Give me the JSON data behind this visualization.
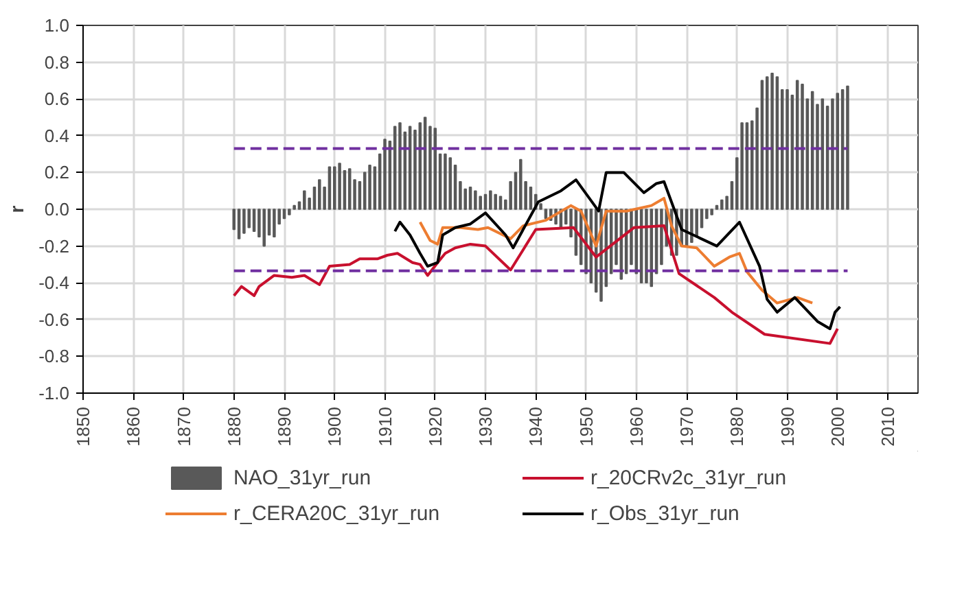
{
  "chart_data": {
    "type": "line",
    "ylabel": "r",
    "xlim": [
      1850,
      2016
    ],
    "xticks": [
      {
        "value": 1850,
        "label": "1850"
      },
      {
        "value": 1860,
        "label": "1860"
      },
      {
        "value": 1870,
        "label": "1870"
      },
      {
        "value": 1880,
        "label": "1880"
      },
      {
        "value": 1890,
        "label": "1890"
      },
      {
        "value": 1900,
        "label": "1900"
      },
      {
        "value": 1910,
        "label": "1910"
      },
      {
        "value": 1920,
        "label": "1920"
      },
      {
        "value": 1930,
        "label": "1930"
      },
      {
        "value": 1940,
        "label": "1940"
      },
      {
        "value": 1950,
        "label": "1950"
      },
      {
        "value": 1960,
        "label": "1960"
      },
      {
        "value": 1970,
        "label": "1970"
      },
      {
        "value": 1980,
        "label": "1980"
      },
      {
        "value": 1990,
        "label": "1990"
      },
      {
        "value": 2000,
        "label": "2000"
      },
      {
        "value": 2010,
        "label": "2010"
      }
    ],
    "ylim": [
      -1.0,
      1.0
    ],
    "yticks": [
      {
        "value": -1,
        "label": "-1.0"
      },
      {
        "value": -0.8,
        "label": "-0.8"
      },
      {
        "value": -0.6,
        "label": "-0.6"
      },
      {
        "value": -0.4,
        "label": "-0.4"
      },
      {
        "value": -0.2,
        "label": "-0.2"
      },
      {
        "value": 0,
        "label": "0.0"
      },
      {
        "value": 0.2,
        "label": "0.2"
      },
      {
        "value": 0.4,
        "label": "0.4"
      },
      {
        "value": 0.6,
        "label": "0.6"
      },
      {
        "value": 0.8,
        "label": "0.8"
      },
      {
        "value": 1,
        "label": "1.0"
      }
    ],
    "grid": true,
    "legend": "bottom",
    "series": [
      {
        "name": "NAO_31yr_run",
        "type": "bar",
        "color": "#595959",
        "x": [
          1880,
          1881,
          1882,
          1883,
          1884,
          1885,
          1886,
          1887,
          1888,
          1889,
          1890,
          1891,
          1892,
          1893,
          1894,
          1895,
          1896,
          1897,
          1898,
          1899,
          1900,
          1901,
          1902,
          1903,
          1904,
          1905,
          1906,
          1907,
          1908,
          1909,
          1910,
          1911,
          1912,
          1913,
          1914,
          1915,
          1916,
          1917,
          1918,
          1919,
          1920,
          1921,
          1922,
          1923,
          1924,
          1925,
          1926,
          1927,
          1928,
          1929,
          1930,
          1931,
          1932,
          1933,
          1934,
          1935,
          1936,
          1937,
          1938,
          1939,
          1940,
          1941,
          1942,
          1943,
          1944,
          1945,
          1946,
          1947,
          1948,
          1949,
          1950,
          1951,
          1952,
          1953,
          1954,
          1955,
          1956,
          1957,
          1958,
          1959,
          1960,
          1961,
          1962,
          1963,
          1964,
          1965,
          1966,
          1967,
          1968,
          1969,
          1970,
          1971,
          1972,
          1973,
          1974,
          1975,
          1976,
          1977,
          1978,
          1979,
          1980,
          1981,
          1982,
          1983,
          1984,
          1985,
          1986,
          1987,
          1988,
          1989,
          1990,
          1991,
          1992,
          1993,
          1994,
          1995,
          1996,
          1997,
          1998,
          1999,
          2000,
          2001,
          2002
        ],
        "values": [
          -0.11,
          -0.16,
          -0.13,
          -0.1,
          -0.12,
          -0.15,
          -0.2,
          -0.14,
          -0.15,
          -0.08,
          -0.05,
          -0.03,
          0.02,
          0.04,
          0.1,
          0.06,
          0.12,
          0.16,
          0.12,
          0.23,
          0.23,
          0.25,
          0.21,
          0.22,
          0.16,
          0.15,
          0.2,
          0.24,
          0.23,
          0.3,
          0.38,
          0.37,
          0.45,
          0.47,
          0.42,
          0.45,
          0.43,
          0.47,
          0.5,
          0.45,
          0.44,
          0.3,
          0.3,
          0.28,
          0.24,
          0.15,
          0.11,
          0.12,
          0.1,
          0.07,
          0.08,
          0.1,
          0.08,
          0.07,
          0.05,
          0.15,
          0.2,
          0.27,
          0.15,
          0.12,
          0.08,
          0.03,
          -0.05,
          -0.06,
          -0.08,
          -0.1,
          -0.08,
          -0.15,
          -0.25,
          -0.3,
          -0.35,
          -0.4,
          -0.45,
          -0.5,
          -0.42,
          -0.35,
          -0.3,
          -0.38,
          -0.35,
          -0.3,
          -0.35,
          -0.4,
          -0.4,
          -0.42,
          -0.35,
          -0.3,
          -0.2,
          -0.25,
          -0.25,
          -0.2,
          -0.2,
          -0.18,
          -0.15,
          -0.1,
          -0.05,
          -0.03,
          0.02,
          0.05,
          0.07,
          0.15,
          0.28,
          0.47,
          0.47,
          0.48,
          0.55,
          0.7,
          0.72,
          0.74,
          0.72,
          0.65,
          0.65,
          0.62,
          0.7,
          0.68,
          0.6,
          0.64,
          0.57,
          0.6,
          0.56,
          0.6,
          0.63,
          0.65,
          0.67
        ]
      },
      {
        "name": "r_20CRv2c_31yr_run",
        "color": "#c8102e",
        "x": [
          1880,
          1881.5,
          1884,
          1885,
          1888,
          1891.5,
          1894,
          1897,
          1899,
          1903,
          1905,
          1908.5,
          1910.5,
          1912.5,
          1915.5,
          1917,
          1918.5,
          1920.5,
          1922,
          1924,
          1927,
          1930,
          1935,
          1940,
          1947.5,
          1952,
          1959.5,
          1965.5,
          1968.5,
          1975.5,
          1979,
          1985.5,
          1998.5,
          2000
        ],
        "values": [
          -0.47,
          -0.42,
          -0.47,
          -0.42,
          -0.36,
          -0.37,
          -0.36,
          -0.41,
          -0.31,
          -0.3,
          -0.27,
          -0.27,
          -0.25,
          -0.24,
          -0.29,
          -0.3,
          -0.36,
          -0.29,
          -0.24,
          -0.21,
          -0.19,
          -0.2,
          -0.33,
          -0.11,
          -0.1,
          -0.26,
          -0.1,
          -0.09,
          -0.35,
          -0.48,
          -0.56,
          -0.68,
          -0.73,
          -0.65
        ]
      },
      {
        "name": "r_CERA20C_31yr_run",
        "color": "#ed7d31",
        "x": [
          1917,
          1919,
          1920.5,
          1921.5,
          1925,
          1928.5,
          1930.5,
          1935,
          1937.5,
          1942,
          1947,
          1949,
          1952,
          1954,
          1958,
          1963,
          1965.5,
          1967,
          1969,
          1972,
          1975.5,
          1978.5,
          1980.5,
          1982,
          1985,
          1988,
          1992,
          1995
        ],
        "values": [
          -0.07,
          -0.17,
          -0.19,
          -0.1,
          -0.1,
          -0.11,
          -0.1,
          -0.16,
          -0.09,
          -0.06,
          0.02,
          -0.01,
          -0.2,
          -0.01,
          -0.01,
          0.02,
          0.06,
          -0.09,
          -0.2,
          -0.21,
          -0.31,
          -0.26,
          -0.24,
          -0.34,
          -0.44,
          -0.51,
          -0.48,
          -0.51
        ]
      },
      {
        "name": "r_Obs_31yr_run",
        "color": "#000000",
        "x": [
          1912,
          1913,
          1915,
          1917,
          1918.5,
          1920.5,
          1921.5,
          1924,
          1927,
          1930,
          1934,
          1935.5,
          1940.5,
          1945,
          1948,
          1952.5,
          1954,
          1957.5,
          1961.5,
          1964,
          1965.5,
          1969,
          1976,
          1980.5,
          1984.5,
          1986,
          1988,
          1991.5,
          1996,
          1998.5,
          1999.5,
          2000.5
        ],
        "values": [
          -0.12,
          -0.07,
          -0.14,
          -0.24,
          -0.31,
          -0.29,
          -0.14,
          -0.1,
          -0.08,
          -0.02,
          -0.14,
          -0.21,
          0.04,
          0.1,
          0.16,
          -0.01,
          0.2,
          0.2,
          0.09,
          0.14,
          0.15,
          -0.11,
          -0.2,
          -0.07,
          -0.31,
          -0.49,
          -0.56,
          -0.48,
          -0.61,
          -0.65,
          -0.56,
          -0.53
        ]
      },
      {
        "color": "#7030a0",
        "line_style": "dashed",
        "x": [
          1880,
          2002
        ],
        "values": [
          0.33,
          0.33
        ]
      },
      {
        "color": "#7030a0",
        "line_style": "dashed",
        "x": [
          1880,
          2002
        ],
        "values": [
          -0.335,
          -0.335
        ]
      }
    ]
  }
}
